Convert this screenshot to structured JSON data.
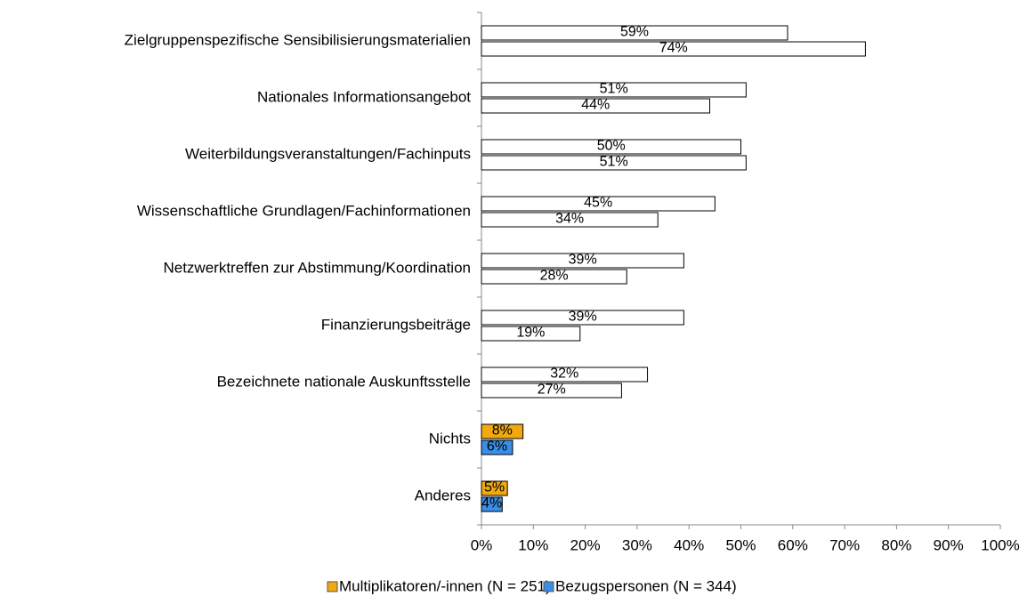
{
  "chart_data": {
    "type": "bar",
    "orientation": "horizontal",
    "categories": [
      "Zielgruppenspezifische Sensibilisierungsmaterialien",
      "Nationales Informationsangebot",
      "Weiterbildungsveranstaltungen/Fachinputs",
      "Wissenschaftliche Grundlagen/Fachinformationen",
      "Netzwerktreffen zur Abstimmung/Koordination",
      "Finanzierungsbeiträge",
      "Bezeichnete nationale Auskunftsstelle",
      "Nichts",
      "Anderes"
    ],
    "series": [
      {
        "name": "Multiplikatoren/-innen (N = 251)",
        "color": "#f2a90f",
        "point_colors": [
          "#ffffff",
          "#ffffff",
          "#ffffff",
          "#ffffff",
          "#ffffff",
          "#ffffff",
          "#ffffff",
          "#f2a90f",
          "#f2a90f"
        ],
        "values": [
          59,
          51,
          50,
          45,
          39,
          39,
          32,
          8,
          5
        ],
        "value_labels": [
          "59%",
          "51%",
          "50%",
          "45%",
          "39%",
          "39%",
          "32%",
          "8%",
          "5%"
        ]
      },
      {
        "name": "Bezugspersonen (N = 344)",
        "color": "#3a8ee6",
        "point_colors": [
          "#ffffff",
          "#ffffff",
          "#ffffff",
          "#ffffff",
          "#ffffff",
          "#ffffff",
          "#ffffff",
          "#3a8ee6",
          "#3a8ee6"
        ],
        "values": [
          74,
          44,
          51,
          34,
          28,
          19,
          27,
          6,
          4
        ],
        "value_labels": [
          "74%",
          "44%",
          "51%",
          "34%",
          "28%",
          "19%",
          "27%",
          "6%",
          "4%"
        ]
      }
    ],
    "xlim": [
      0,
      100
    ],
    "xticks": [
      {
        "value": 0,
        "label": "0%"
      },
      {
        "value": 10,
        "label": "10%"
      },
      {
        "value": 20,
        "label": "20%"
      },
      {
        "value": 30,
        "label": "30%"
      },
      {
        "value": 40,
        "label": "40%"
      },
      {
        "value": 50,
        "label": "50%"
      },
      {
        "value": 60,
        "label": "60%"
      },
      {
        "value": 70,
        "label": "70%"
      },
      {
        "value": 80,
        "label": "80%"
      },
      {
        "value": 90,
        "label": "90%"
      },
      {
        "value": 100,
        "label": "100%"
      }
    ],
    "grid": false,
    "legend": "bottom"
  }
}
